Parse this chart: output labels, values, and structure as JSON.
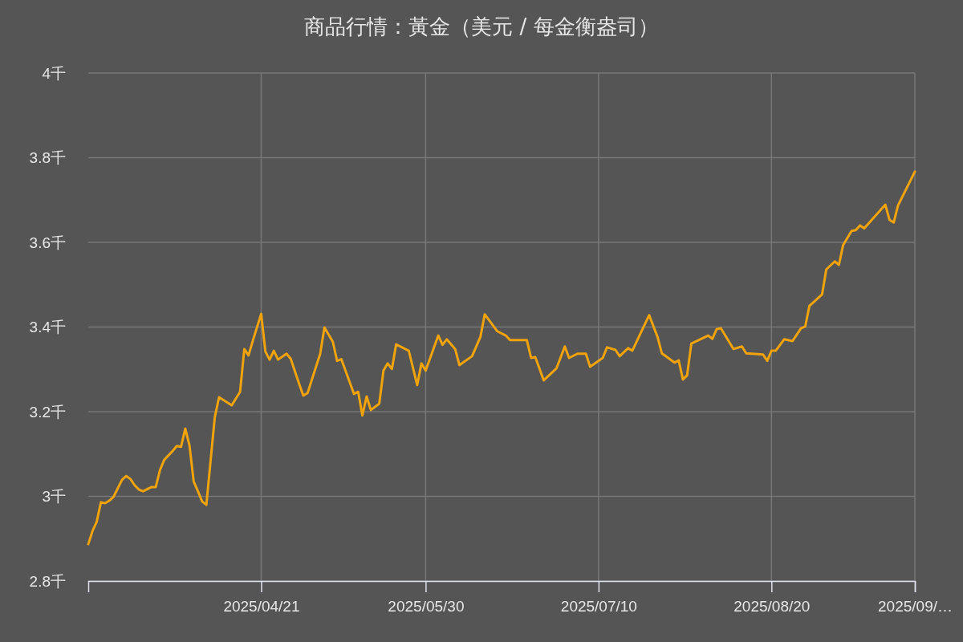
{
  "chart_data": {
    "type": "line",
    "title": "商品行情：黃金（美元 / 每金衡盎司）",
    "x": [
      "2025-03-11",
      "2025-03-12",
      "2025-03-13",
      "2025-03-14",
      "2025-03-15",
      "2025-03-16",
      "2025-03-17",
      "2025-03-19",
      "2025-03-20",
      "2025-03-21",
      "2025-03-22",
      "2025-03-23",
      "2025-03-24",
      "2025-03-26",
      "2025-03-27",
      "2025-03-28",
      "2025-03-29",
      "2025-03-31",
      "2025-04-01",
      "2025-04-02",
      "2025-04-03",
      "2025-04-04",
      "2025-04-05",
      "2025-04-06",
      "2025-04-07",
      "2025-04-08",
      "2025-04-10",
      "2025-04-11",
      "2025-04-14",
      "2025-04-16",
      "2025-04-17",
      "2025-04-18",
      "2025-04-19",
      "2025-04-21",
      "2025-04-22",
      "2025-04-23",
      "2025-04-24",
      "2025-04-25",
      "2025-04-27",
      "2025-04-28",
      "2025-04-30",
      "2025-05-01",
      "2025-05-02",
      "2025-05-05",
      "2025-05-06",
      "2025-05-08",
      "2025-05-09",
      "2025-05-10",
      "2025-05-13",
      "2025-05-14",
      "2025-05-15",
      "2025-05-16",
      "2025-05-17",
      "2025-05-19",
      "2025-05-20",
      "2025-05-21",
      "2025-05-22",
      "2025-05-23",
      "2025-05-26",
      "2025-05-28",
      "2025-05-29",
      "2025-05-30",
      "2025-06-02",
      "2025-06-03",
      "2025-06-04",
      "2025-06-06",
      "2025-06-07",
      "2025-06-10",
      "2025-06-12",
      "2025-06-13",
      "2025-06-16",
      "2025-06-18",
      "2025-06-19",
      "2025-06-23",
      "2025-06-24",
      "2025-06-25",
      "2025-06-27",
      "2025-06-30",
      "2025-07-02",
      "2025-07-03",
      "2025-07-05",
      "2025-07-07",
      "2025-07-08",
      "2025-07-11",
      "2025-07-12",
      "2025-07-14",
      "2025-07-15",
      "2025-07-17",
      "2025-07-18",
      "2025-07-22",
      "2025-07-24",
      "2025-07-25",
      "2025-07-28",
      "2025-07-29",
      "2025-07-30",
      "2025-07-31",
      "2025-08-01",
      "2025-08-05",
      "2025-08-06",
      "2025-08-07",
      "2025-08-08",
      "2025-08-11",
      "2025-08-13",
      "2025-08-14",
      "2025-08-18",
      "2025-08-19",
      "2025-08-20",
      "2025-08-21",
      "2025-08-23",
      "2025-08-25",
      "2025-08-27",
      "2025-08-28",
      "2025-08-29",
      "2025-09-01",
      "2025-09-02",
      "2025-09-04",
      "2025-09-05",
      "2025-09-06",
      "2025-09-08",
      "2025-09-09",
      "2025-09-10",
      "2025-09-11",
      "2025-09-16",
      "2025-09-17",
      "2025-09-18",
      "2025-09-19",
      "2025-09-23"
    ],
    "series": [
      {
        "color": "#f0a30a",
        "values": [
          2.887,
          2.918,
          2.94,
          2.986,
          2.984,
          2.99,
          2.999,
          3.039,
          3.048,
          3.041,
          3.026,
          3.016,
          3.012,
          3.022,
          3.022,
          3.062,
          3.086,
          3.107,
          3.119,
          3.117,
          3.16,
          3.12,
          3.035,
          3.012,
          2.988,
          2.98,
          3.187,
          3.234,
          3.215,
          3.247,
          3.348,
          3.333,
          3.367,
          3.431,
          3.342,
          3.323,
          3.344,
          3.323,
          3.337,
          3.325,
          3.266,
          3.238,
          3.244,
          3.337,
          3.399,
          3.365,
          3.32,
          3.324,
          3.242,
          3.247,
          3.191,
          3.236,
          3.204,
          3.219,
          3.297,
          3.314,
          3.301,
          3.359,
          3.344,
          3.263,
          3.314,
          3.297,
          3.38,
          3.358,
          3.371,
          3.348,
          3.31,
          3.331,
          3.377,
          3.43,
          3.39,
          3.38,
          3.369,
          3.369,
          3.327,
          3.329,
          3.274,
          3.302,
          3.354,
          3.327,
          3.337,
          3.337,
          3.306,
          3.327,
          3.352,
          3.346,
          3.331,
          3.35,
          3.344,
          3.428,
          3.376,
          3.338,
          3.316,
          3.321,
          3.276,
          3.286,
          3.361,
          3.38,
          3.372,
          3.395,
          3.397,
          3.348,
          3.354,
          3.338,
          3.335,
          3.32,
          3.344,
          3.344,
          3.371,
          3.367,
          3.397,
          3.401,
          3.45,
          3.477,
          3.536,
          3.555,
          3.547,
          3.594,
          3.627,
          3.629,
          3.64,
          3.633,
          3.689,
          3.653,
          3.647,
          3.687,
          3.767
        ]
      }
    ],
    "xlim": [
      "2025-03-11",
      "2025-09-23"
    ],
    "xticks": [
      {
        "value": "2025-04-21",
        "label": "2025/04/21"
      },
      {
        "value": "2025-05-30",
        "label": "2025/05/30"
      },
      {
        "value": "2025-07-10",
        "label": "2025/07/10"
      },
      {
        "value": "2025-08-20",
        "label": "2025/08/20"
      },
      {
        "value": "2025-09-23",
        "label": "2025/09/…"
      }
    ],
    "ylim": [
      2.8,
      4
    ],
    "yticks": [
      {
        "value": 2.8,
        "label": "2.8千"
      },
      {
        "value": 3,
        "label": "3千"
      },
      {
        "value": 3.2,
        "label": "3.2千"
      },
      {
        "value": 3.4,
        "label": "3.4千"
      },
      {
        "value": 3.6,
        "label": "3.6千"
      },
      {
        "value": 3.8,
        "label": "3.8千"
      },
      {
        "value": 4,
        "label": "4千"
      }
    ],
    "grid": true,
    "marker": "none",
    "line_style": "solid"
  }
}
